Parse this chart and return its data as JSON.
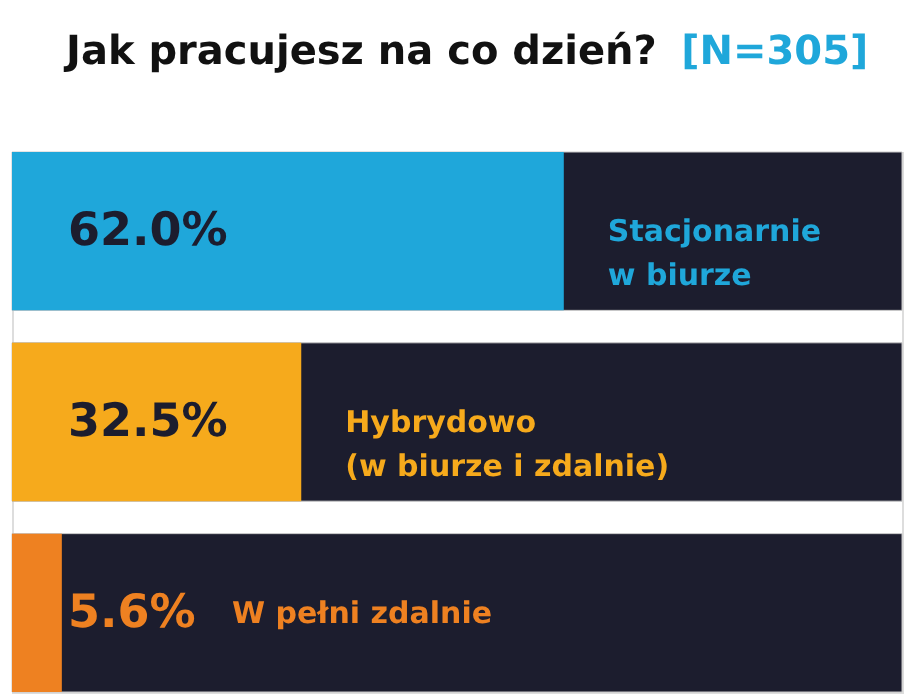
{
  "chart_data": {
    "type": "bar",
    "orientation": "horizontal",
    "title": "Jak pracujesz na co dzień?",
    "subtitle": "[N=305]",
    "categories": [
      "Stacjonarnie\nw biurze",
      "Hybrydowo\n(w biurze i zdalnie)",
      "W pełni zdalnie"
    ],
    "values": [
      62.0,
      32.5,
      5.6
    ],
    "colors": [
      "#1fa7da",
      "#f6aa1c",
      "#ee8121"
    ],
    "value_labels": [
      "62.0%",
      "32.5%",
      "5.6%"
    ],
    "xlim": [
      0,
      100
    ],
    "tick_labels": false
  }
}
